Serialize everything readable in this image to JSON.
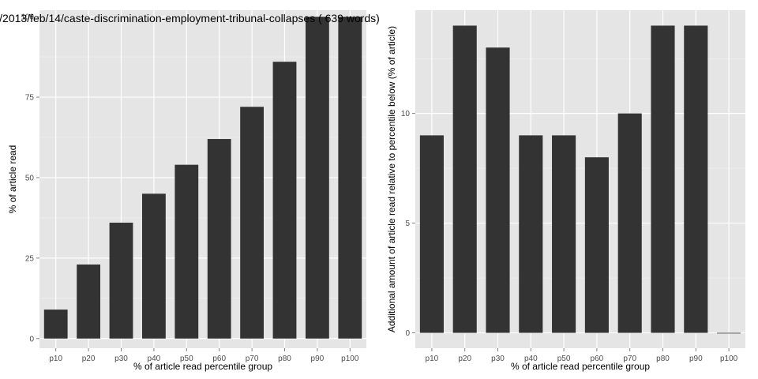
{
  "chart_data": [
    {
      "type": "bar",
      "title": "/2013/feb/14/caste-discrimination-employment-tribunal-collapses ( 639 words)",
      "xlabel": "% of article read percentile group",
      "ylabel": "% of article read",
      "categories": [
        "p10",
        "p20",
        "p30",
        "p40",
        "p50",
        "p60",
        "p70",
        "p80",
        "p90",
        "p100"
      ],
      "values": [
        9,
        23,
        36,
        45,
        54,
        62,
        72,
        86,
        100,
        100
      ],
      "ylim": [
        -3,
        102
      ],
      "yticks": [
        0,
        25,
        50,
        75,
        100
      ],
      "grid": true,
      "background_color": "#e5e5e5",
      "bar_color": "#333333",
      "grid_color": "#ffffff"
    },
    {
      "type": "bar",
      "title": "",
      "xlabel": "% of article read percentile group",
      "ylabel": "Additional amount of article read relative to percentile below (% of article)",
      "categories": [
        "p10",
        "p20",
        "p30",
        "p40",
        "p50",
        "p60",
        "p70",
        "p80",
        "p90",
        "p100"
      ],
      "values": [
        9,
        14,
        13,
        9,
        9,
        8,
        10,
        14,
        14,
        0
      ],
      "ylim": [
        -0.7,
        14.7
      ],
      "yticks": [
        0,
        5,
        10
      ],
      "grid": true,
      "background_color": "#e5e5e5",
      "bar_color": "#333333",
      "grid_color": "#ffffff"
    }
  ]
}
